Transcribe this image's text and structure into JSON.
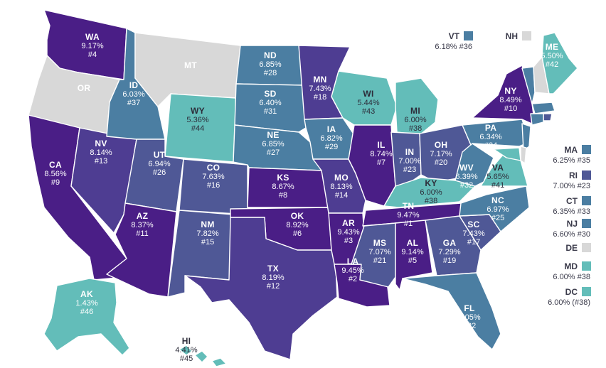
{
  "colors": {
    "c1": "#4a1e86",
    "c2": "#4e3d92",
    "c3": "#4f5896",
    "c4": "#4b7ea2",
    "c5": "#63bdb9",
    "nodata": "#d8d8d8",
    "border": "#ffffff"
  },
  "states": [
    {
      "code": "WA",
      "value": "9.17%",
      "rank": "#4"
    },
    {
      "code": "OR",
      "value": "",
      "rank": ""
    },
    {
      "code": "CA",
      "value": "8.56%",
      "rank": "#9"
    },
    {
      "code": "NV",
      "value": "8.14%",
      "rank": "#13"
    },
    {
      "code": "ID",
      "value": "6.03%",
      "rank": "#37"
    },
    {
      "code": "MT",
      "value": "",
      "rank": ""
    },
    {
      "code": "WY",
      "value": "5.36%",
      "rank": "#44"
    },
    {
      "code": "UT",
      "value": "6.94%",
      "rank": "#26"
    },
    {
      "code": "AZ",
      "value": "8.37%",
      "rank": "#11"
    },
    {
      "code": "CO",
      "value": "7.63%",
      "rank": "#16"
    },
    {
      "code": "NM",
      "value": "7.82%",
      "rank": "#15"
    },
    {
      "code": "ND",
      "value": "6.85%",
      "rank": "#28"
    },
    {
      "code": "SD",
      "value": "6.40%",
      "rank": "#31"
    },
    {
      "code": "NE",
      "value": "6.85%",
      "rank": "#27"
    },
    {
      "code": "KS",
      "value": "8.67%",
      "rank": "#8"
    },
    {
      "code": "OK",
      "value": "8.92%",
      "rank": "#6"
    },
    {
      "code": "TX",
      "value": "8.19%",
      "rank": "#12"
    },
    {
      "code": "MN",
      "value": "7.43%",
      "rank": "#18"
    },
    {
      "code": "IA",
      "value": "6.82%",
      "rank": "#29"
    },
    {
      "code": "MO",
      "value": "8.13%",
      "rank": "#14"
    },
    {
      "code": "AR",
      "value": "9.43%",
      "rank": "#3"
    },
    {
      "code": "LA",
      "value": "9.45%",
      "rank": "#2"
    },
    {
      "code": "WI",
      "value": "5.44%",
      "rank": "#43"
    },
    {
      "code": "IL",
      "value": "8.74%",
      "rank": "#7"
    },
    {
      "code": "MI",
      "value": "6.00%",
      "rank": "#38"
    },
    {
      "code": "IN",
      "value": "7.00%",
      "rank": "#23"
    },
    {
      "code": "OH",
      "value": "7.17%",
      "rank": "#20"
    },
    {
      "code": "KY",
      "value": "6.00%",
      "rank": "#38"
    },
    {
      "code": "TN",
      "value": "9.47%",
      "rank": "#1"
    },
    {
      "code": "MS",
      "value": "7.07%",
      "rank": "#21"
    },
    {
      "code": "AL",
      "value": "9.14%",
      "rank": "#5"
    },
    {
      "code": "GA",
      "value": "7.29%",
      "rank": "#19"
    },
    {
      "code": "FL",
      "value": "7.05%",
      "rank": "#22"
    },
    {
      "code": "SC",
      "value": "7.43%",
      "rank": "#17"
    },
    {
      "code": "NC",
      "value": "6.97%",
      "rank": "#25"
    },
    {
      "code": "VA",
      "value": "5.65%",
      "rank": "#41"
    },
    {
      "code": "WV",
      "value": "6.39%",
      "rank": "#32"
    },
    {
      "code": "PA",
      "value": "6.34%",
      "rank": "#34"
    },
    {
      "code": "NY",
      "value": "8.49%",
      "rank": "#10"
    },
    {
      "code": "ME",
      "value": "5.50%",
      "rank": "#42"
    },
    {
      "code": "AK",
      "value": "1.43%",
      "rank": "#46"
    },
    {
      "code": "HI",
      "value": "4.41%",
      "rank": "#45"
    }
  ],
  "callouts": [
    {
      "code": "VT",
      "value": "6.18% #36"
    },
    {
      "code": "NH",
      "value": ""
    },
    {
      "code": "MA",
      "value": "6.25% #35"
    },
    {
      "code": "RI",
      "value": "7.00% #23"
    },
    {
      "code": "CT",
      "value": "6.35% #33"
    },
    {
      "code": "NJ",
      "value": "6.60% #30"
    },
    {
      "code": "DE",
      "value": ""
    },
    {
      "code": "MD",
      "value": "6.00% #38"
    },
    {
      "code": "DC",
      "value": "6.00% (#38)"
    }
  ]
}
